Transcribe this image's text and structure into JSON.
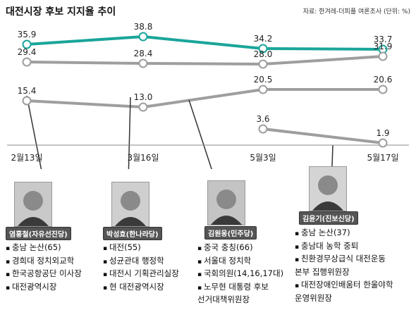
{
  "title": "대전시장 후보 지지율 추이",
  "source": "자료: 한겨레-더피플 여론조사 (단위: %)",
  "chart_data": {
    "type": "line",
    "categories": [
      "2월13일",
      "3월16일",
      "5월3일",
      "5월17일"
    ],
    "ylim": [
      0,
      40
    ],
    "series": [
      {
        "values": [
          35.9,
          38.8,
          34.2,
          33.7
        ],
        "color": "#1aa59a"
      },
      {
        "values": [
          29.4,
          28.4,
          28.0,
          31.9
        ],
        "color": "#9e9e9e"
      },
      {
        "values": [
          15.4,
          13.0,
          20.5,
          20.6
        ],
        "color": "#9e9e9e"
      },
      {
        "values": [
          null,
          null,
          3.6,
          1.9
        ],
        "color": "#9e9e9e"
      }
    ],
    "labels": [
      [
        "35.9",
        "38.8",
        "34.2",
        "33.7"
      ],
      [
        "29.4",
        "28.4",
        "28.0",
        "31.9"
      ],
      [
        "15.4",
        "13.0",
        "20.5",
        "20.6"
      ],
      [
        "",
        "",
        "3.6",
        "1.9"
      ]
    ]
  },
  "candidates": [
    {
      "tag": "염홍철(자유선진당)",
      "info": [
        "충남 논산(65)",
        "경희대 정치외교학",
        "한국공항공단 이사장",
        "대전광역시장"
      ]
    },
    {
      "tag": "박성효(한나라당)",
      "info": [
        "대전(55)",
        "성균관대 행정학",
        "대전시 기획관리실장",
        "현 대전광역시장"
      ]
    },
    {
      "tag": "김원웅(민주당)",
      "info": [
        "중국 충칭(66)",
        "서울대 정치학",
        "국회의원(14,16,17대)",
        "노무현 대통령 후보",
        "선거대책위원장"
      ]
    },
    {
      "tag": "김윤기(진보신당)",
      "info": [
        "충남 논산(37)",
        "충남대 농학 중퇴",
        "친환경무상급식 대전운동",
        "본부 집행위원장",
        "대전장애인배움터 한울야학",
        "운영위원장"
      ]
    }
  ]
}
